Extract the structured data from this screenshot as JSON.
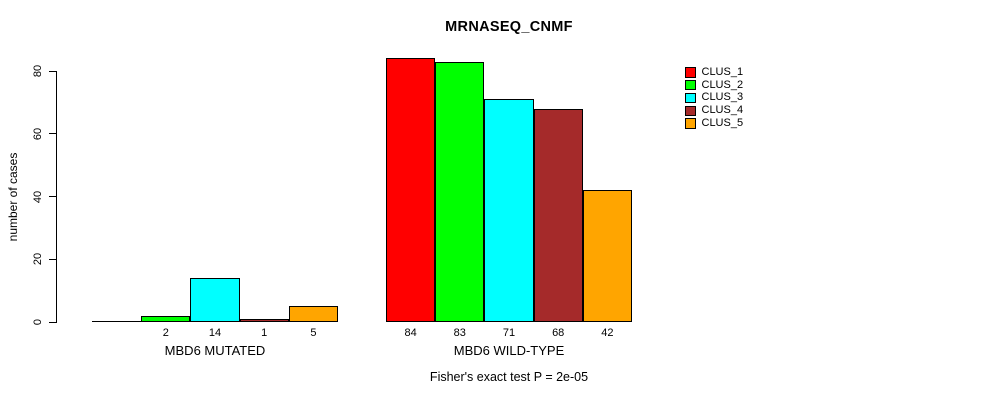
{
  "page": {
    "title": "MRNASEQ_CNMF",
    "footer": "Fisher's exact test P = 2e-05"
  },
  "chart_data": {
    "type": "bar",
    "title": "MRNASEQ_CNMF",
    "xlabel": "",
    "ylabel": "number of cases",
    "ylim": [
      0,
      80
    ],
    "yticks": [
      0,
      20,
      40,
      60,
      80
    ],
    "grid": false,
    "legend_position": "right",
    "annotation": "Fisher's exact test P = 2e-05",
    "categories": [
      "MBD6 MUTATED",
      "MBD6 WILD-TYPE"
    ],
    "series": [
      {
        "name": "CLUS_1",
        "color": "#FF0000",
        "values": [
          0,
          84
        ]
      },
      {
        "name": "CLUS_2",
        "color": "#00FF00",
        "values": [
          2,
          83
        ]
      },
      {
        "name": "CLUS_3",
        "color": "#00FFFF",
        "values": [
          14,
          71
        ]
      },
      {
        "name": "CLUS_4",
        "color": "#A52A2A",
        "values": [
          1,
          68
        ]
      },
      {
        "name": "CLUS_5",
        "color": "#FFA500",
        "values": [
          5,
          42
        ]
      }
    ],
    "bar_value_labels": [
      [
        "",
        "2",
        "14",
        "1",
        "5"
      ],
      [
        "84",
        "83",
        "71",
        "68",
        "42"
      ]
    ]
  }
}
